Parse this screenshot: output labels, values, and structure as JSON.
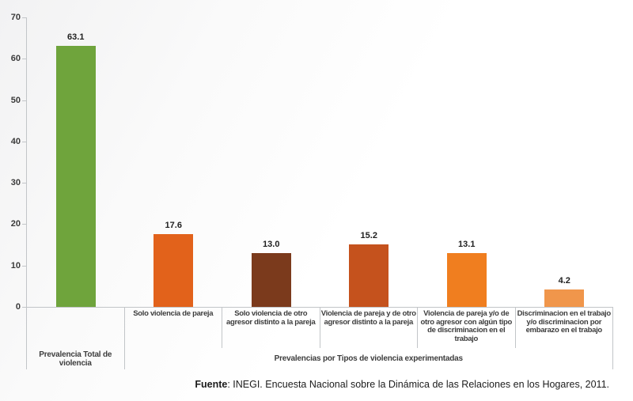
{
  "chart_data": {
    "type": "bar",
    "title": "",
    "xlabel": "",
    "ylabel": "",
    "ylim": [
      0,
      70
    ],
    "yticks": [
      0,
      10,
      20,
      30,
      40,
      50,
      60,
      70
    ],
    "grid": false,
    "legend": "none",
    "categories": [
      "Prevalencia Total de violencia",
      "Solo violencia de pareja",
      "Solo violencia de otro agresor distinto a la pareja",
      "Violencia de pareja y de otro agresor distinto a la pareja",
      "Violencia de pareja y/o de otro agresor con algún tipo de discriminacion en el trabajo",
      "Discriminacion en el trabajo y/o discriminacion por embarazo en el trabajo"
    ],
    "values": [
      63.1,
      17.6,
      13.0,
      15.2,
      13.1,
      4.2
    ],
    "value_labels": [
      "63.1",
      "17.6",
      "13.0",
      "15.2",
      "13.1",
      "4.2"
    ],
    "bar_colors": [
      "#6FA43C",
      "#E2621B",
      "#7B3A1C",
      "#C5521D",
      "#F07E1F",
      "#F0964B"
    ],
    "axis_groups": [
      {
        "label": "Prevalencia Total de violencia",
        "span": 1
      },
      {
        "label": "Prevalencias por Tipos de violencia experimentadas",
        "span": 5
      }
    ],
    "axis_color": "#c2c5c8",
    "label_color": "#3d3d3d",
    "value_text_color": "#1f1f1f"
  },
  "footer": {
    "source_label": "Fuente",
    "source_text": ": INEGI. Encuesta Nacional sobre la Dinámica de las Relaciones en los Hogares, 2011."
  }
}
